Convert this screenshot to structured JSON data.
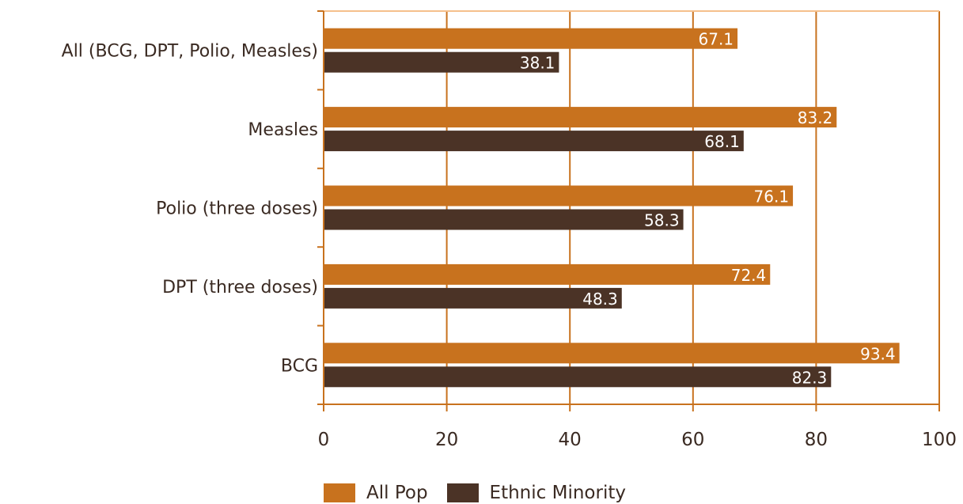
{
  "chart_data": {
    "type": "bar",
    "orientation": "horizontal",
    "categories": [
      "All (BCG, DPT, Polio, Measles)",
      "Measles",
      "Polio (three doses)",
      "DPT (three doses)",
      "BCG"
    ],
    "series": [
      {
        "name": "All Pop",
        "color": "#C8721E",
        "values": [
          67.1,
          83.2,
          76.1,
          72.4,
          93.4
        ]
      },
      {
        "name": "Ethnic Minority",
        "color": "#4B3326",
        "values": [
          38.1,
          68.1,
          58.3,
          48.3,
          82.3
        ]
      }
    ],
    "xlim": [
      0,
      100
    ],
    "xticks": [
      0,
      20,
      40,
      60,
      80,
      100
    ],
    "grid": true,
    "gridColor": "#C8721E",
    "legend_position": "bottom",
    "title": "",
    "xlabel": "",
    "ylabel": ""
  }
}
